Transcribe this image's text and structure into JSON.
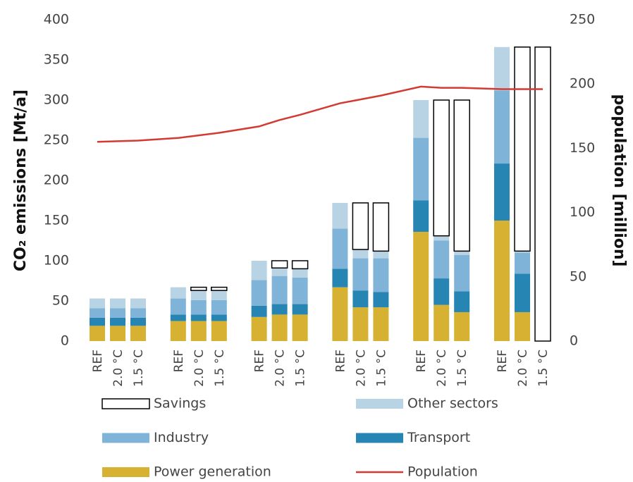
{
  "chart_data": {
    "type": "stacked_bar_line",
    "ylabel": "CO₂ emissions [Mt/a]",
    "y2label": "population [million]",
    "categories": [
      "REF",
      "2.0 °C",
      "1.5 °C",
      "REF",
      "2.0 °C",
      "1.5 °C",
      "REF",
      "2.0 °C",
      "1.5 °C",
      "REF",
      "2.0 °C",
      "1.5 °C",
      "REF",
      "2.0 °C",
      "1.5 °C",
      "REF",
      "2.0 °C",
      "1.5 °C"
    ],
    "series": [
      {
        "name": "Savings",
        "color": "#ffffff",
        "border": "#000000",
        "values": [
          0,
          0,
          0,
          0,
          4,
          4,
          0,
          9,
          10,
          0,
          58,
          60,
          0,
          169,
          188,
          0,
          254,
          366
        ]
      },
      {
        "name": "Other sectors",
        "color": "#b7d3e4",
        "values": [
          12,
          12,
          12,
          14,
          12,
          12,
          24,
          10,
          11,
          32,
          11,
          9,
          47,
          6,
          5,
          54,
          2,
          0
        ]
      },
      {
        "name": "Industry",
        "color": "#7fb3d8",
        "values": [
          12,
          12,
          12,
          20,
          18,
          18,
          32,
          35,
          33,
          50,
          40,
          42,
          78,
          47,
          45,
          91,
          26,
          0
        ]
      },
      {
        "name": "Transport",
        "color": "#2685b3",
        "values": [
          10,
          10,
          10,
          8,
          8,
          8,
          14,
          13,
          13,
          23,
          21,
          19,
          39,
          33,
          26,
          71,
          48,
          0
        ]
      },
      {
        "name": "Power generation",
        "color": "#d6b132",
        "values": [
          19,
          19,
          19,
          25,
          25,
          25,
          30,
          33,
          33,
          67,
          42,
          42,
          136,
          45,
          36,
          150,
          36,
          0
        ]
      },
      {
        "name": "Population",
        "color": "#d23a32",
        "axis": "y2",
        "values": [
          155,
          155.5,
          156,
          158,
          160,
          162,
          167,
          172,
          176,
          185,
          188,
          191,
          198,
          197,
          197,
          196,
          196,
          196
        ]
      }
    ],
    "ylim": [
      0,
      400
    ],
    "yticks": [
      0,
      50,
      100,
      150,
      200,
      250,
      300,
      350,
      400
    ],
    "y2lim": [
      0,
      250
    ],
    "y2ticks": [
      0,
      50,
      100,
      150,
      200,
      250
    ]
  }
}
